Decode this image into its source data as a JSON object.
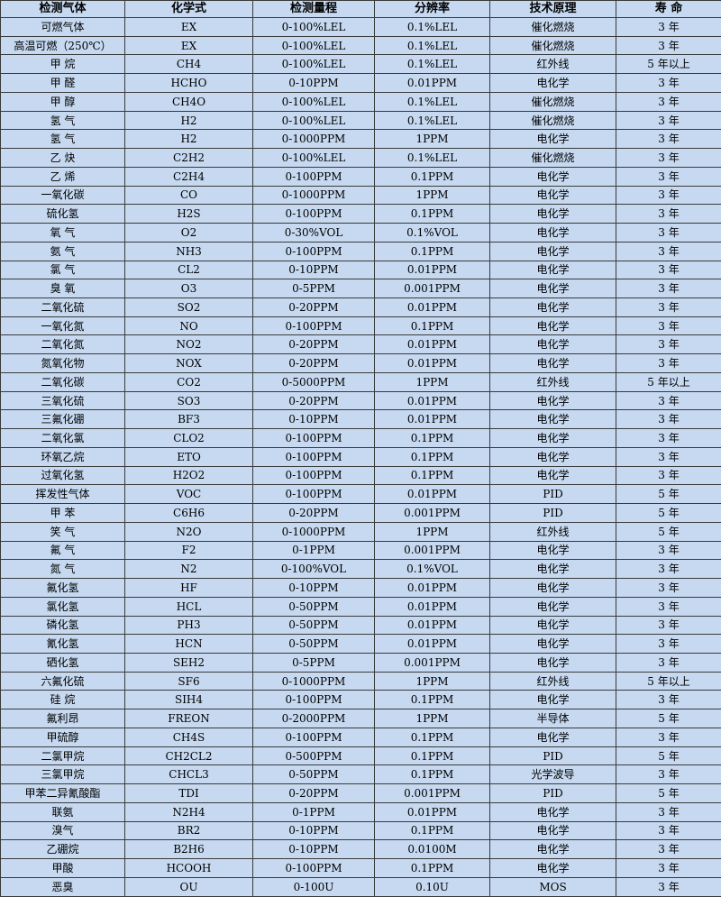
{
  "table": {
    "header": [
      "检测气体",
      "化学式",
      "检测量程",
      "分辨率",
      "技术原理",
      "寿 命"
    ],
    "rows": [
      [
        "可燃气体",
        "EX",
        "0-100%LEL",
        "0.1%LEL",
        "催化燃烧",
        "3 年"
      ],
      [
        "高温可燃（250℃）",
        "EX",
        "0-100%LEL",
        "0.1%LEL",
        "催化燃烧",
        "3 年"
      ],
      [
        "甲 烷",
        "CH4",
        "0-100%LEL",
        "0.1%LEL",
        "红外线",
        "5 年以上"
      ],
      [
        "甲 醛",
        "HCHO",
        "0-10PPM",
        "0.01PPM",
        "电化学",
        "3 年"
      ],
      [
        "甲 醇",
        "CH4O",
        "0-100%LEL",
        "0.1%LEL",
        "催化燃烧",
        "3 年"
      ],
      [
        "氢 气",
        "H2",
        "0-100%LEL",
        "0.1%LEL",
        "催化燃烧",
        "3 年"
      ],
      [
        "氢 气",
        "H2",
        "0-1000PPM",
        "1PPM",
        "电化学",
        "3 年"
      ],
      [
        "乙 炔",
        "C2H2",
        "0-100%LEL",
        "0.1%LEL",
        "催化燃烧",
        "3 年"
      ],
      [
        "乙 烯",
        "C2H4",
        "0-100PPM",
        "0.1PPM",
        "电化学",
        "3 年"
      ],
      [
        "一氧化碳",
        "CO",
        "0-1000PPM",
        "1PPM",
        "电化学",
        "3 年"
      ],
      [
        "硫化氢",
        "H2S",
        "0-100PPM",
        "0.1PPM",
        "电化学",
        "3 年"
      ],
      [
        "氧 气",
        "O2",
        "0-30%VOL",
        "0.1%VOL",
        "电化学",
        "3 年"
      ],
      [
        "氨 气",
        "NH3",
        "0-100PPM",
        "0.1PPM",
        "电化学",
        "3 年"
      ],
      [
        "氯 气",
        "CL2",
        "0-10PPM",
        "0.01PPM",
        "电化学",
        "3 年"
      ],
      [
        "臭 氧",
        "O3",
        "0-5PPM",
        "0.001PPM",
        "电化学",
        "3 年"
      ],
      [
        "二氧化硫",
        "SO2",
        "0-20PPM",
        "0.01PPM",
        "电化学",
        "3 年"
      ],
      [
        "一氧化氮",
        "NO",
        "0-100PPM",
        "0.1PPM",
        "电化学",
        "3 年"
      ],
      [
        "二氧化氮",
        "NO2",
        "0-20PPM",
        "0.01PPM",
        "电化学",
        "3 年"
      ],
      [
        "氮氧化物",
        "NOX",
        "0-20PPM",
        "0.01PPM",
        "电化学",
        "3 年"
      ],
      [
        "二氧化碳",
        "CO2",
        "0-5000PPM",
        "1PPM",
        "红外线",
        "5 年以上"
      ],
      [
        "三氧化硫",
        "SO3",
        "0-20PPM",
        "0.01PPM",
        "电化学",
        "3 年"
      ],
      [
        "三氟化硼",
        "BF3",
        "0-10PPM",
        "0.01PPM",
        "电化学",
        "3 年"
      ],
      [
        "二氧化氯",
        "CLO2",
        "0-100PPM",
        "0.1PPM",
        "电化学",
        "3 年"
      ],
      [
        "环氧乙烷",
        "ETO",
        "0-100PPM",
        "0.1PPM",
        "电化学",
        "3 年"
      ],
      [
        "过氧化氢",
        "H2O2",
        "0-100PPM",
        "0.1PPM",
        "电化学",
        "3 年"
      ],
      [
        "挥发性气体",
        "VOC",
        "0-100PPM",
        "0.01PPM",
        "PID",
        "5 年"
      ],
      [
        "甲 苯",
        "C6H6",
        "0-20PPM",
        "0.001PPM",
        "PID",
        "5 年"
      ],
      [
        "笑 气",
        "N2O",
        "0-1000PPM",
        "1PPM",
        "红外线",
        "5 年"
      ],
      [
        "氟 气",
        "F2",
        "0-1PPM",
        "0.001PPM",
        "电化学",
        "3 年"
      ],
      [
        "氮 气",
        "N2",
        "0-100%VOL",
        "0.1%VOL",
        "电化学",
        "3 年"
      ],
      [
        "氟化氢",
        "HF",
        "0-10PPM",
        "0.01PPM",
        "电化学",
        "3 年"
      ],
      [
        "氯化氢",
        "HCL",
        "0-50PPM",
        "0.01PPM",
        "电化学",
        "3 年"
      ],
      [
        "磷化氢",
        "PH3",
        "0-50PPM",
        "0.01PPM",
        "电化学",
        "3 年"
      ],
      [
        "氰化氢",
        "HCN",
        "0-50PPM",
        "0.01PPM",
        "电化学",
        "3 年"
      ],
      [
        "硒化氢",
        "SEH2",
        "0-5PPM",
        "0.001PPM",
        "电化学",
        "3 年"
      ],
      [
        "六氟化硫",
        "SF6",
        "0-1000PPM",
        "1PPM",
        "红外线",
        "5 年以上"
      ],
      [
        "硅 烷",
        "SIH4",
        "0-100PPM",
        "0.1PPM",
        "电化学",
        "3 年"
      ],
      [
        "氟利昂",
        "FREON",
        "0-2000PPM",
        "1PPM",
        "半导体",
        "5 年"
      ],
      [
        "甲硫醇",
        "CH4S",
        "0-100PPM",
        "0.1PPM",
        "电化学",
        "3 年"
      ],
      [
        "二氯甲烷",
        "CH2CL2",
        "0-500PPM",
        "0.1PPM",
        "PID",
        "5 年"
      ],
      [
        "三氯甲烷",
        "CHCL3",
        "0-50PPM",
        "0.1PPM",
        "光学波导",
        "3 年"
      ],
      [
        "甲苯二异氰酸酯",
        "TDI",
        "0-20PPM",
        "0.001PPM",
        "PID",
        "5 年"
      ],
      [
        "联氨",
        "N2H4",
        "0-1PPM",
        "0.01PPM",
        "电化学",
        "3 年"
      ],
      [
        "溴气",
        "BR2",
        "0-10PPM",
        "0.1PPM",
        "电化学",
        "3 年"
      ],
      [
        "乙硼烷",
        "B2H6",
        "0-10PPM",
        "0.0100M",
        "电化学",
        "3 年"
      ],
      [
        "甲酸",
        "HCOOH",
        "0-100PPM",
        "0.1PPM",
        "电化学",
        "3 年"
      ],
      [
        "恶臭",
        "OU",
        "0-100U",
        "0.10U",
        "MOS",
        "3 年"
      ]
    ]
  }
}
